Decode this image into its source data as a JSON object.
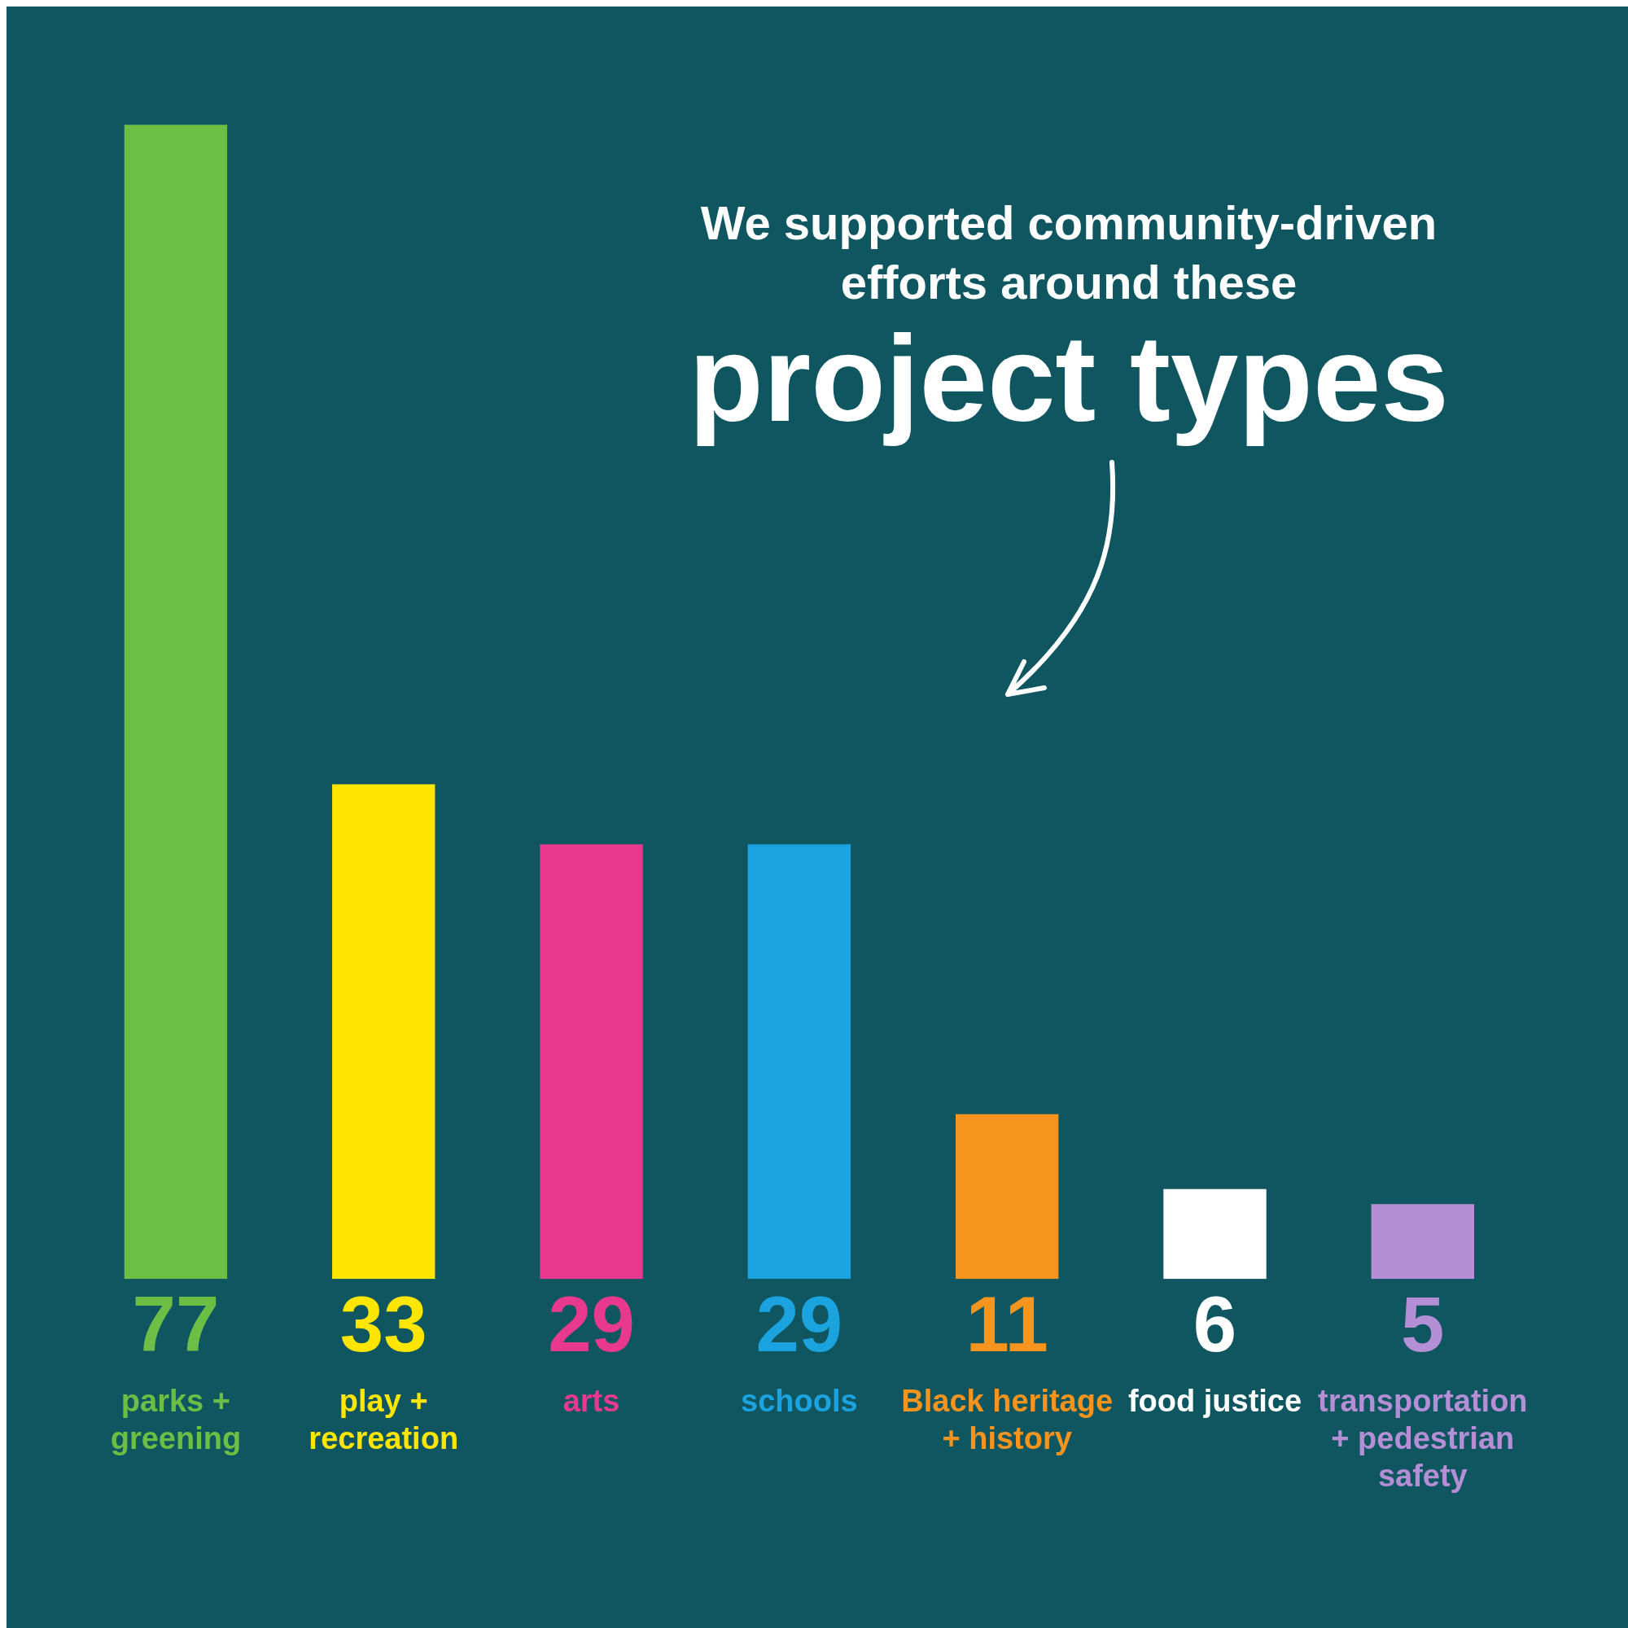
{
  "chart_data": {
    "type": "bar",
    "title": "We supported community-driven efforts around these",
    "subtitle": "project types",
    "categories": [
      "parks + greening",
      "play + recreation",
      "arts",
      "schools",
      "Black heritage + history",
      "food justice",
      "transportation + pedestrian safety"
    ],
    "values": [
      77,
      33,
      29,
      29,
      11,
      6,
      5
    ],
    "colors": [
      "#6cbf44",
      "#ffe600",
      "#e8398f",
      "#1aa3de",
      "#f7941d",
      "#ffffff",
      "#b48fd6"
    ],
    "data_labels": true,
    "grid": false,
    "legend": false
  }
}
